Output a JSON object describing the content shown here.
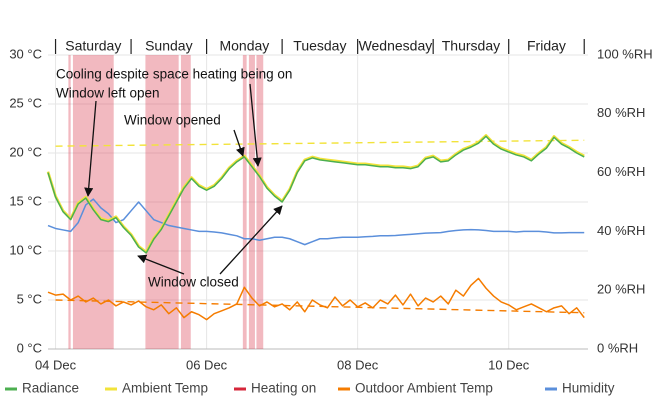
{
  "chart_data": {
    "type": "line",
    "day_labels": [
      "Saturday",
      "Sunday",
      "Monday",
      "Tuesday",
      "Wednesday",
      "Thursday",
      "Friday"
    ],
    "xlim": [
      3.9,
      11.05
    ],
    "xticks": [
      {
        "value": 4,
        "label": "04 Dec"
      },
      {
        "value": 6,
        "label": "06 Dec"
      },
      {
        "value": 8,
        "label": "08 Dec"
      },
      {
        "value": 10,
        "label": "10 Dec"
      }
    ],
    "ylim": [
      0,
      30
    ],
    "yticks": [
      {
        "value": 0,
        "label": "0 °C"
      },
      {
        "value": 5,
        "label": "5 °C"
      },
      {
        "value": 10,
        "label": "10 °C"
      },
      {
        "value": 15,
        "label": "15 °C"
      },
      {
        "value": 20,
        "label": "20 °C"
      },
      {
        "value": 25,
        "label": "25 °C"
      },
      {
        "value": 30,
        "label": "30 °C"
      }
    ],
    "y2lim": [
      0,
      100
    ],
    "y2ticks": [
      {
        "value": 0,
        "label": "0 %RH"
      },
      {
        "value": 20,
        "label": "20 %RH"
      },
      {
        "value": 40,
        "label": "40 %RH"
      },
      {
        "value": 60,
        "label": "60 %RH"
      },
      {
        "value": 80,
        "label": "80 %RH"
      },
      {
        "value": 100,
        "label": "100 %RH"
      }
    ],
    "grid": true,
    "legend": "bottom",
    "annotations": [
      {
        "text": "Cooling despite space heating being on"
      },
      {
        "text": "Window left open"
      },
      {
        "text": "Window opened"
      },
      {
        "text": "Window closed"
      }
    ],
    "x": [
      3.9,
      4.0,
      4.1,
      4.2,
      4.3,
      4.4,
      4.5,
      4.6,
      4.7,
      4.8,
      4.9,
      5.0,
      5.1,
      5.2,
      5.3,
      5.4,
      5.5,
      5.6,
      5.7,
      5.8,
      5.9,
      6.0,
      6.1,
      6.2,
      6.3,
      6.4,
      6.5,
      6.6,
      6.7,
      6.8,
      6.9,
      7.0,
      7.1,
      7.2,
      7.3,
      7.4,
      7.5,
      7.6,
      7.7,
      7.8,
      7.9,
      8.0,
      8.1,
      8.2,
      8.3,
      8.4,
      8.5,
      8.6,
      8.7,
      8.8,
      8.9,
      9.0,
      9.1,
      9.2,
      9.3,
      9.4,
      9.5,
      9.6,
      9.7,
      9.8,
      9.9,
      10.0,
      10.1,
      10.2,
      10.3,
      10.4,
      10.5,
      10.6,
      10.7,
      10.8,
      10.9,
      11.0
    ],
    "series": [
      {
        "name": "Radiance",
        "color": "#4caf50",
        "values": [
          18,
          15.5,
          14,
          13.2,
          14.8,
          15.4,
          14.2,
          13.2,
          13,
          13.4,
          12.4,
          11.6,
          10.4,
          9.8,
          11.2,
          12.2,
          13.6,
          15,
          16.4,
          17.4,
          16.6,
          16.2,
          16.6,
          17.4,
          18.4,
          19.1,
          19.6,
          18.6,
          17.6,
          16.4,
          15.6,
          15,
          16.2,
          18,
          19.2,
          19.5,
          19.3,
          19.2,
          19.1,
          19,
          18.9,
          18.8,
          18.8,
          18.7,
          18.6,
          18.6,
          18.5,
          18.5,
          18.4,
          18.6,
          19.4,
          19.6,
          19.1,
          19.2,
          19.8,
          20.3,
          20.6,
          21,
          21.7,
          20.9,
          20.4,
          20.1,
          19.8,
          19.6,
          19.2,
          19.9,
          20.5,
          21.6,
          20.9,
          20.5,
          20,
          19.6
        ]
      },
      {
        "name": "Ambient Temp",
        "color": "#f2e33a",
        "values": [
          18.1,
          15.6,
          14.1,
          13.3,
          14.9,
          15.5,
          14.3,
          13.3,
          13.1,
          13.5,
          12.5,
          11.7,
          10.5,
          9.9,
          11.3,
          12.3,
          13.7,
          15.1,
          16.5,
          17.5,
          16.7,
          16.3,
          16.7,
          17.5,
          18.5,
          19.2,
          19.7,
          18.7,
          17.7,
          16.5,
          15.7,
          15.1,
          16.3,
          18.1,
          19.3,
          19.6,
          19.4,
          19.3,
          19.2,
          19.1,
          19,
          18.9,
          18.9,
          18.8,
          18.7,
          18.7,
          18.6,
          18.6,
          18.5,
          18.7,
          19.5,
          19.7,
          19.2,
          19.3,
          19.9,
          20.4,
          20.7,
          21.1,
          21.8,
          21,
          20.5,
          20.2,
          19.9,
          19.7,
          19.3,
          20,
          20.6,
          21.7,
          21,
          20.6,
          20.1,
          19.7
        ],
        "trend": {
          "x": [
            4,
            11
          ],
          "values": [
            20.7,
            21.3
          ]
        }
      },
      {
        "name": "Heating on",
        "color": "#d6263a",
        "spans": [
          [
            4.17,
            4.2
          ],
          [
            4.23,
            4.77
          ],
          [
            5.19,
            5.63
          ],
          [
            5.66,
            5.79
          ],
          [
            6.48,
            6.53
          ],
          [
            6.56,
            6.64
          ],
          [
            6.66,
            6.75
          ]
        ]
      },
      {
        "name": "Outdoor Ambient Temp",
        "color": "#f57c00",
        "values": [
          5.8,
          5.5,
          5.6,
          5,
          5.4,
          4.8,
          5.2,
          4.6,
          5,
          4.4,
          4.8,
          4.5,
          4.9,
          4.3,
          4,
          4.5,
          3.6,
          4.2,
          3.2,
          3.8,
          3.5,
          3,
          3.6,
          3.9,
          4.2,
          4.6,
          6.3,
          5.2,
          4.4,
          4.8,
          4.3,
          4.6,
          4,
          4.8,
          3.8,
          5,
          4.5,
          4.2,
          5.3,
          4.4,
          5,
          4.3,
          4.7,
          4.2,
          5,
          4.6,
          5.5,
          4.5,
          5.6,
          4.4,
          5.2,
          4.8,
          5.4,
          4.6,
          6,
          5.4,
          6.5,
          7.2,
          6.2,
          5.4,
          4.8,
          4.5,
          4,
          4.3,
          4.6,
          4.2,
          3.8,
          4.2,
          4.4,
          3.6,
          4.2,
          3.2
        ],
        "trend": {
          "x": [
            4,
            11
          ],
          "values": [
            5,
            3.7
          ]
        }
      },
      {
        "name": "Humidity",
        "color": "#5b8fdb",
        "axis": "y2",
        "values": [
          42,
          41,
          40.5,
          40,
          43,
          49,
          51,
          48,
          46,
          43,
          44,
          47,
          50,
          47,
          44,
          43,
          42,
          41.5,
          41,
          40.5,
          40,
          40,
          39.8,
          39.5,
          39,
          38.5,
          37.5,
          37.5,
          37,
          37.5,
          38,
          38,
          37.5,
          36.5,
          35.5,
          36.5,
          37.5,
          37.5,
          37.8,
          38,
          38,
          38,
          38.2,
          38.3,
          38.5,
          38.5,
          38.6,
          38.8,
          39,
          39.2,
          39.4,
          39.5,
          39.6,
          40,
          40.3,
          40.5,
          40.6,
          40.5,
          40.3,
          40,
          40,
          40,
          39.8,
          40,
          40,
          40,
          39.8,
          39.5,
          39.5,
          39.6,
          39.6,
          39.6
        ]
      }
    ]
  }
}
